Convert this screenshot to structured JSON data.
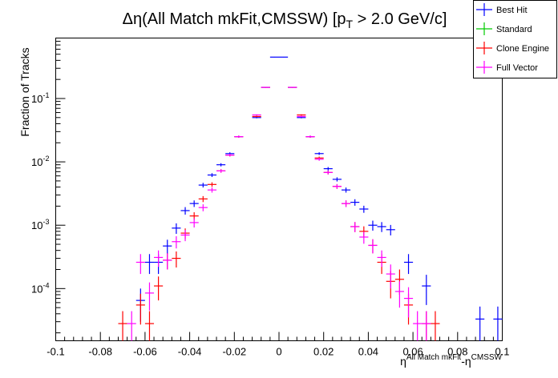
{
  "title": {
    "prefix": "Δη(All Match mkFit,CMSSW) [p",
    "sub": "T",
    "suffix": " > 2.0 GeV/c]"
  },
  "ylabel": "Fraction of Tracks",
  "xlabel": {
    "base1": "η",
    "sup1": "All Match mkFit",
    "mid": "-η",
    "sup2": "CMSSW"
  },
  "legend": {
    "entries": [
      {
        "label": "Best Hit",
        "color": "#0000ff"
      },
      {
        "label": "Standard",
        "color": "#00cc00"
      },
      {
        "label": "Clone Engine",
        "color": "#ff0000"
      },
      {
        "label": "Full Vector",
        "color": "#ff00ff"
      }
    ]
  },
  "chart_data": {
    "type": "scatter",
    "log_y": true,
    "bin_width": 0.004,
    "xlim": [
      -0.1,
      0.1
    ],
    "ylim": [
      1.5e-05,
      0.9
    ],
    "x_ticks": [
      -0.1,
      -0.08,
      -0.06,
      -0.04,
      -0.02,
      0,
      0.02,
      0.04,
      0.06,
      0.08,
      0.1
    ],
    "x_tick_labels": [
      "-0.1",
      "-0.08",
      "-0.06",
      "-0.04",
      "-0.02",
      "0",
      "0.02",
      "0.04",
      "0.06",
      "0.08",
      "0.1"
    ],
    "y_major_exp": [
      -4,
      -3,
      -2,
      -1
    ],
    "y_tick_labels": [
      {
        "base": "10",
        "exp": "-4"
      },
      {
        "base": "10",
        "exp": "-3"
      },
      {
        "base": "10",
        "exp": "-2"
      },
      {
        "base": "10",
        "exp": "-1"
      }
    ],
    "grid": false,
    "legend_position": "top-right",
    "series": [
      {
        "name": "Best Hit",
        "color": "#0000ff",
        "points": [
          [
            -0.062,
            6.5e-05,
            3.5e-05
          ],
          [
            -0.058,
            0.00026,
            9e-05
          ],
          [
            -0.054,
            0.00026,
            9e-05
          ],
          [
            -0.05,
            0.00047,
            0.00012
          ],
          [
            -0.046,
            0.0009,
            0.00017
          ],
          [
            -0.042,
            0.0017,
            0.00023
          ],
          [
            -0.038,
            0.0022,
            0.00026
          ],
          [
            -0.034,
            0.0043,
            0.00036
          ],
          [
            -0.03,
            0.0062,
            0.00043
          ],
          [
            -0.026,
            0.009,
            0.00052
          ],
          [
            -0.022,
            0.0135,
            0.00065
          ],
          [
            -0.018,
            0.025,
            0.0009
          ],
          [
            -0.01,
            0.05,
            0.0013
          ],
          [
            -0.006,
            0.15,
            0.0022
          ],
          [
            -0.002,
            0.45,
            0.0039
          ],
          [
            0.002,
            0.45,
            0.0039
          ],
          [
            0.006,
            0.15,
            0.0022
          ],
          [
            0.01,
            0.05,
            0.0013
          ],
          [
            0.014,
            0.025,
            0.0009
          ],
          [
            0.018,
            0.0135,
            0.00065
          ],
          [
            0.022,
            0.0078,
            0.00049
          ],
          [
            0.026,
            0.0053,
            0.0004
          ],
          [
            0.03,
            0.0036,
            0.00033
          ],
          [
            0.034,
            0.0023,
            0.00027
          ],
          [
            0.038,
            0.0018,
            0.00023
          ],
          [
            0.042,
            0.001,
            0.00018
          ],
          [
            0.046,
            0.00095,
            0.00017
          ],
          [
            0.05,
            0.00085,
            0.00016
          ],
          [
            0.058,
            0.00026,
            9e-05
          ],
          [
            0.066,
            0.00011,
            5.5e-05
          ],
          [
            0.09,
            3.3e-05,
            1.9e-05
          ],
          [
            0.098,
            3.3e-05,
            1.9e-05
          ]
        ]
      },
      {
        "name": "Standard",
        "color": "#00cc00",
        "points": []
      },
      {
        "name": "Clone Engine",
        "color": "#ff0000",
        "points": [
          [
            -0.07,
            2.8e-05,
            1.6e-05
          ],
          [
            -0.062,
            5.5e-05,
            2.8e-05
          ],
          [
            -0.058,
            2.8e-05,
            1.6e-05
          ],
          [
            -0.054,
            0.00011,
            4.5e-05
          ],
          [
            -0.05,
            0.00028,
            8e-05
          ],
          [
            -0.046,
            0.0003,
            8.5e-05
          ],
          [
            -0.042,
            0.00075,
            0.00014
          ],
          [
            -0.038,
            0.0014,
            0.0002
          ],
          [
            -0.034,
            0.0026,
            0.00028
          ],
          [
            -0.03,
            0.0044,
            0.00036
          ],
          [
            -0.026,
            0.0072,
            0.00046
          ],
          [
            -0.022,
            0.0128,
            0.00063
          ],
          [
            -0.018,
            0.025,
            0.0009
          ],
          [
            -0.01,
            0.052,
            0.0013
          ],
          [
            -0.006,
            0.15,
            0.0022
          ],
          [
            0.006,
            0.15,
            0.0022
          ],
          [
            0.01,
            0.055,
            0.0013
          ],
          [
            0.014,
            0.025,
            0.0009
          ],
          [
            0.018,
            0.0115,
            0.0006
          ],
          [
            0.022,
            0.0068,
            0.00046
          ],
          [
            0.026,
            0.0041,
            0.00035
          ],
          [
            0.03,
            0.0022,
            0.00026
          ],
          [
            0.034,
            0.00095,
            0.00017
          ],
          [
            0.038,
            0.0008,
            0.00016
          ],
          [
            0.042,
            0.00048,
            0.00012
          ],
          [
            0.046,
            0.00026,
            9e-05
          ],
          [
            0.05,
            0.00013,
            6e-05
          ],
          [
            0.054,
            0.00014,
            6e-05
          ],
          [
            0.058,
            5.5e-05,
            2.8e-05
          ],
          [
            0.066,
            2.8e-05,
            1.6e-05
          ],
          [
            0.07,
            2.8e-05,
            1.6e-05
          ]
        ]
      },
      {
        "name": "Full Vector",
        "color": "#ff00ff",
        "points": [
          [
            -0.066,
            2.8e-05,
            1.6e-05
          ],
          [
            -0.062,
            0.00026,
            9e-05
          ],
          [
            -0.058,
            8.5e-05,
            4e-05
          ],
          [
            -0.054,
            0.00031,
            9e-05
          ],
          [
            -0.05,
            0.00028,
            8e-05
          ],
          [
            -0.046,
            0.00055,
            0.00012
          ],
          [
            -0.042,
            0.0007,
            0.00014
          ],
          [
            -0.038,
            0.0011,
            0.00018
          ],
          [
            -0.034,
            0.0019,
            0.00024
          ],
          [
            -0.03,
            0.0036,
            0.00033
          ],
          [
            -0.026,
            0.0072,
            0.00046
          ],
          [
            -0.022,
            0.0128,
            0.00063
          ],
          [
            -0.018,
            0.025,
            0.0009
          ],
          [
            -0.01,
            0.055,
            0.0013
          ],
          [
            -0.006,
            0.15,
            0.0022
          ],
          [
            0.006,
            0.15,
            0.0022
          ],
          [
            0.01,
            0.052,
            0.0013
          ],
          [
            0.014,
            0.025,
            0.0009
          ],
          [
            0.018,
            0.011,
            0.0006
          ],
          [
            0.022,
            0.0068,
            0.00046
          ],
          [
            0.026,
            0.0041,
            0.00035
          ],
          [
            0.03,
            0.0022,
            0.00026
          ],
          [
            0.034,
            0.00095,
            0.00017
          ],
          [
            0.038,
            0.00065,
            0.00014
          ],
          [
            0.042,
            0.00048,
            0.00012
          ],
          [
            0.046,
            0.00031,
            9e-05
          ],
          [
            0.05,
            0.00017,
            7e-05
          ],
          [
            0.054,
            9e-05,
            4e-05
          ],
          [
            0.058,
            7e-05,
            3.5e-05
          ],
          [
            0.062,
            2.8e-05,
            1.6e-05
          ],
          [
            0.066,
            2.8e-05,
            1.6e-05
          ]
        ]
      }
    ]
  }
}
